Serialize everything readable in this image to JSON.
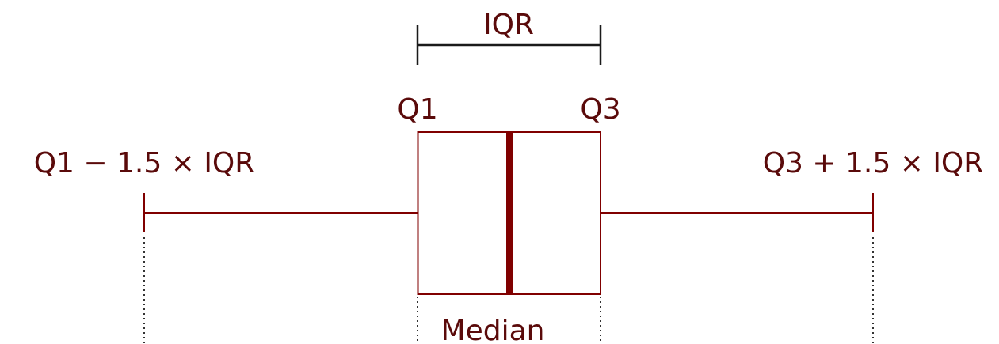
{
  "diagram": {
    "iqr_label": "IQR",
    "q1_label": "Q1",
    "q3_label": "Q3",
    "lower_fence_label": "Q1 − 1.5 × IQR",
    "upper_fence_label": "Q3 + 1.5 × IQR",
    "median_label": "Median"
  },
  "colors": {
    "box": "#800000",
    "text": "#5a0a0a",
    "bracket": "#1a1a1a",
    "dotted": "#333333"
  }
}
